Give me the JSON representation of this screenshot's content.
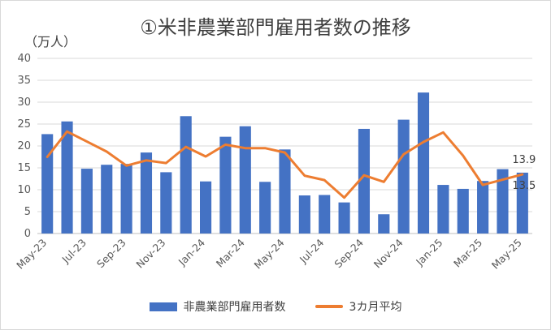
{
  "chart_data": {
    "type": "bar",
    "title": "①米非農業部門雇用者数の推移",
    "unit_label": "（万人）",
    "categories": [
      "May-23",
      "Jun-23",
      "Jul-23",
      "Aug-23",
      "Sep-23",
      "Oct-23",
      "Nov-23",
      "Dec-23",
      "Jan-24",
      "Feb-24",
      "Mar-24",
      "Apr-24",
      "May-24",
      "Jun-24",
      "Jul-24",
      "Aug-24",
      "Sep-24",
      "Oct-24",
      "Nov-24",
      "Dec-24",
      "Jan-25",
      "Feb-25",
      "Mar-25",
      "Apr-25",
      "May-25"
    ],
    "x_tick_labels": [
      "May-23",
      "Jul-23",
      "Sep-23",
      "Nov-23",
      "Jan-24",
      "Mar-24",
      "May-24",
      "Jul-24",
      "Sep-24",
      "Nov-24",
      "Jan-25",
      "Mar-25",
      "May-25"
    ],
    "ylim": [
      0,
      40
    ],
    "y_ticks": [
      0,
      5,
      10,
      15,
      20,
      25,
      30,
      35,
      40
    ],
    "grid": true,
    "legend_position": "bottom",
    "series": [
      {
        "name": "非農業部門雇用者数",
        "type": "bar",
        "color": "#4472c4",
        "values": [
          22.7,
          25.6,
          14.8,
          15.7,
          15.9,
          18.5,
          14.0,
          26.8,
          11.9,
          22.1,
          24.5,
          11.8,
          19.2,
          8.7,
          8.8,
          7.1,
          23.9,
          4.4,
          26.0,
          32.2,
          11.1,
          10.2,
          12.0,
          14.7,
          13.9
        ]
      },
      {
        "name": "3カ月平均",
        "type": "line",
        "color": "#ed7d31",
        "values": [
          17.5,
          23.3,
          21.0,
          18.7,
          15.5,
          16.7,
          16.1,
          19.8,
          17.6,
          20.3,
          19.5,
          19.5,
          18.5,
          13.2,
          12.2,
          8.2,
          13.3,
          11.8,
          18.1,
          20.9,
          23.1,
          17.8,
          11.1,
          12.3,
          13.5
        ]
      }
    ],
    "data_labels": [
      {
        "series": 0,
        "index": 24,
        "text": "13.9"
      },
      {
        "series": 1,
        "index": 24,
        "text": "13.5"
      }
    ]
  }
}
